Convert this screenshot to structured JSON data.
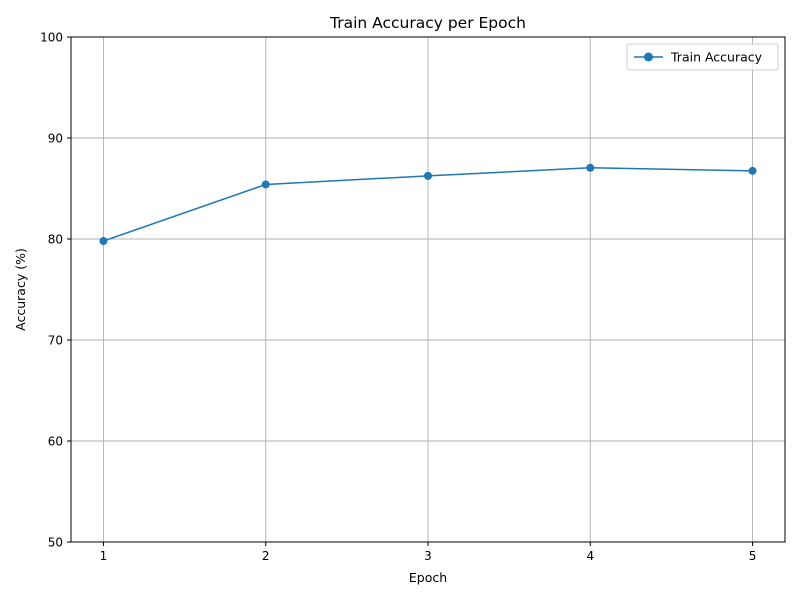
{
  "chart_data": {
    "type": "line",
    "title": "Train Accuracy per Epoch",
    "xlabel": "Epoch",
    "ylabel": "Accuracy (%)",
    "x": [
      1,
      2,
      3,
      4,
      5
    ],
    "xticks": [
      "1",
      "2",
      "3",
      "4",
      "5"
    ],
    "yticks": [
      "50",
      "60",
      "70",
      "80",
      "90",
      "100"
    ],
    "ylim": [
      50,
      100
    ],
    "xlim": [
      0.8,
      5.2
    ],
    "grid": true,
    "legend_position": "top-right",
    "series": [
      {
        "name": "Train Accuracy",
        "color": "#1f77b4",
        "marker": "circle",
        "values": [
          79.8,
          85.4,
          86.25,
          87.05,
          86.75
        ]
      }
    ]
  }
}
